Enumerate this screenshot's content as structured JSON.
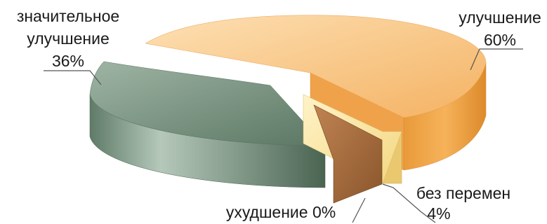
{
  "chart_data": {
    "type": "pie",
    "style": "3d-exploded",
    "slices": [
      {
        "label": "улучшение",
        "value": 60,
        "value_label": "60%",
        "color": "#f6b463"
      },
      {
        "label": "значительное улучшение",
        "value": 36,
        "value_label": "36%",
        "color": "#6f8c77"
      },
      {
        "label": "без перемен",
        "value": 4,
        "value_label": "4%",
        "color": "#f7e09a"
      },
      {
        "label": "ухудшение",
        "value": 0,
        "value_label": "0%",
        "color": "#a7703f"
      }
    ],
    "labels": {
      "improvement": {
        "line1": "улучшение",
        "line2": "60%"
      },
      "significant": {
        "line1": "значительное",
        "line2": "улучшение",
        "line3": "36%"
      },
      "no_change": {
        "line1": "без перемен",
        "line2": "4%"
      },
      "worse": {
        "line1": "ухудшение 0%"
      }
    }
  }
}
